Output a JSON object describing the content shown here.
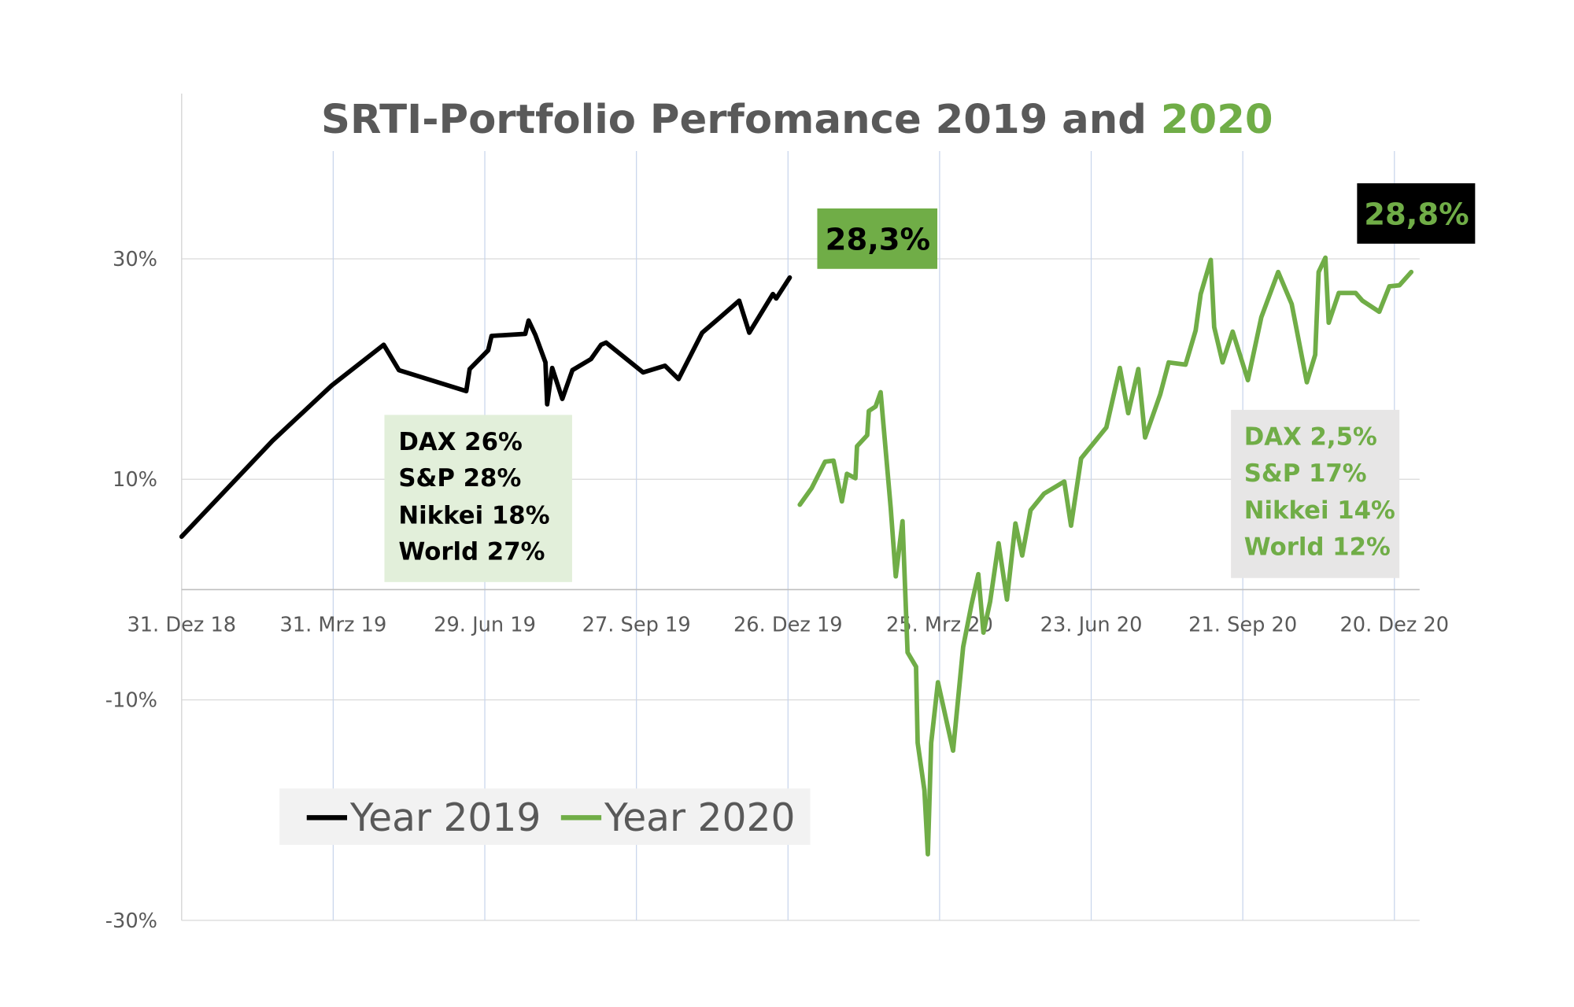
{
  "chart_data": {
    "type": "line",
    "title": {
      "part1": "SRTI-Portfolio Perfomance 2019 and ",
      "part2": "2020"
    },
    "xlabel": "",
    "ylabel": "",
    "x_ticks": [
      "2018-12-31",
      "2019-03-31",
      "2019-06-29",
      "2019-09-27",
      "2019-12-26",
      "2020-03-25",
      "2020-06-23",
      "2020-09-21",
      "2020-12-20"
    ],
    "x_tick_labels": [
      "31. Dez 18",
      "31. Mrz 19",
      "29. Jun 19",
      "27. Sep 19",
      "26. Dez 19",
      "25. Mrz 20",
      "23. Jun 20",
      "21. Sep 20",
      "20. Dez 20"
    ],
    "y_ticks": [
      30,
      10,
      -10,
      -30
    ],
    "y_tick_labels": [
      "30%",
      "10%",
      "-10%",
      "-30%"
    ],
    "ylim": [
      -30,
      30
    ],
    "xlim": [
      "2018-12-31",
      "2021-01-15"
    ],
    "grid": true,
    "legend_placement": "bottom-left",
    "colors": {
      "year2019": "#000000",
      "year2020": "#70AD47",
      "title": "#595959"
    },
    "series": [
      {
        "name": "Year 2019",
        "color": "#000000",
        "points": [
          [
            "2018-12-31",
            4.8
          ],
          [
            "2019-02-23",
            13.5
          ],
          [
            "2019-03-30",
            18.5
          ],
          [
            "2019-04-30",
            22.2
          ],
          [
            "2019-05-09",
            19.9
          ],
          [
            "2019-06-18",
            18.0
          ],
          [
            "2019-06-20",
            20.0
          ],
          [
            "2019-07-01",
            21.7
          ],
          [
            "2019-07-03",
            23.0
          ],
          [
            "2019-07-23",
            23.2
          ],
          [
            "2019-07-25",
            24.4
          ],
          [
            "2019-07-29",
            23.1
          ],
          [
            "2019-08-04",
            20.6
          ],
          [
            "2019-08-05",
            16.8
          ],
          [
            "2019-08-08",
            20.1
          ],
          [
            "2019-08-14",
            17.3
          ],
          [
            "2019-08-20",
            19.9
          ],
          [
            "2019-08-31",
            20.9
          ],
          [
            "2019-09-06",
            22.2
          ],
          [
            "2019-09-09",
            22.4
          ],
          [
            "2019-10-01",
            19.7
          ],
          [
            "2019-10-14",
            20.3
          ],
          [
            "2019-10-22",
            19.1
          ],
          [
            "2019-11-05",
            23.3
          ],
          [
            "2019-11-15",
            24.6
          ],
          [
            "2019-11-27",
            26.2
          ],
          [
            "2019-12-03",
            23.3
          ],
          [
            "2019-12-17",
            26.8
          ],
          [
            "2019-12-19",
            26.4
          ],
          [
            "2019-12-27",
            28.3
          ]
        ]
      },
      {
        "name": "Year 2020",
        "color": "#70AD47",
        "points": [
          [
            "2020-01-02",
            7.7
          ],
          [
            "2020-01-09",
            9.2
          ],
          [
            "2020-01-17",
            11.6
          ],
          [
            "2020-01-22",
            11.7
          ],
          [
            "2020-01-27",
            8.0
          ],
          [
            "2020-01-30",
            10.5
          ],
          [
            "2020-02-04",
            10.1
          ],
          [
            "2020-02-05",
            13.0
          ],
          [
            "2020-02-11",
            14.0
          ],
          [
            "2020-02-12",
            16.2
          ],
          [
            "2020-02-16",
            16.6
          ],
          [
            "2020-02-19",
            17.9
          ],
          [
            "2020-02-25",
            7.4
          ],
          [
            "2020-02-28",
            1.2
          ],
          [
            "2020-03-03",
            6.2
          ],
          [
            "2020-03-06",
            -5.7
          ],
          [
            "2020-03-11",
            -7.0
          ],
          [
            "2020-03-12",
            -13.9
          ],
          [
            "2020-03-16",
            -18.2
          ],
          [
            "2020-03-18",
            -24.0
          ],
          [
            "2020-03-20",
            -13.9
          ],
          [
            "2020-03-24",
            -8.4
          ],
          [
            "2020-04-02",
            -14.6
          ],
          [
            "2020-04-08",
            -5.2
          ],
          [
            "2020-04-13",
            -1.3
          ],
          [
            "2020-04-17",
            1.4
          ],
          [
            "2020-04-20",
            -3.9
          ],
          [
            "2020-04-24",
            -1.1
          ],
          [
            "2020-04-29",
            4.2
          ],
          [
            "2020-05-04",
            -0.9
          ],
          [
            "2020-05-09",
            6.0
          ],
          [
            "2020-05-13",
            3.1
          ],
          [
            "2020-05-18",
            7.2
          ],
          [
            "2020-05-26",
            8.7
          ],
          [
            "2020-06-07",
            9.8
          ],
          [
            "2020-06-11",
            5.8
          ],
          [
            "2020-06-17",
            11.9
          ],
          [
            "2020-07-02",
            14.7
          ],
          [
            "2020-07-10",
            20.1
          ],
          [
            "2020-07-15",
            16.0
          ],
          [
            "2020-07-21",
            20.0
          ],
          [
            "2020-07-25",
            13.8
          ],
          [
            "2020-08-03",
            17.7
          ],
          [
            "2020-08-08",
            20.6
          ],
          [
            "2020-08-18",
            20.4
          ],
          [
            "2020-08-24",
            23.5
          ],
          [
            "2020-08-27",
            26.8
          ],
          [
            "2020-09-02",
            29.9
          ],
          [
            "2020-09-04",
            23.8
          ],
          [
            "2020-09-09",
            20.6
          ],
          [
            "2020-09-15",
            23.4
          ],
          [
            "2020-09-24",
            19.0
          ],
          [
            "2020-10-02",
            24.7
          ],
          [
            "2020-10-12",
            28.8
          ],
          [
            "2020-10-20",
            25.9
          ],
          [
            "2020-10-29",
            18.8
          ],
          [
            "2020-11-03",
            21.3
          ],
          [
            "2020-11-05",
            28.8
          ],
          [
            "2020-11-09",
            30.1
          ],
          [
            "2020-11-11",
            24.2
          ],
          [
            "2020-11-17",
            26.9
          ],
          [
            "2020-11-27",
            26.9
          ],
          [
            "2020-12-01",
            26.2
          ],
          [
            "2020-12-11",
            25.2
          ],
          [
            "2020-12-17",
            27.5
          ],
          [
            "2020-12-23",
            27.6
          ],
          [
            "2020-12-30",
            28.8
          ]
        ]
      }
    ],
    "annotations": {
      "end_2019": "28,3%",
      "end_2020": "28,8%",
      "indices_2019": [
        "DAX 26%",
        "S&P 28%",
        "Nikkei 18%",
        "World 27%"
      ],
      "indices_2020": [
        "DAX 2,5%",
        "S&P 17%",
        "Nikkei 14%",
        "World 12%"
      ]
    },
    "legend": [
      "Year 2019",
      "Year 2020"
    ]
  }
}
